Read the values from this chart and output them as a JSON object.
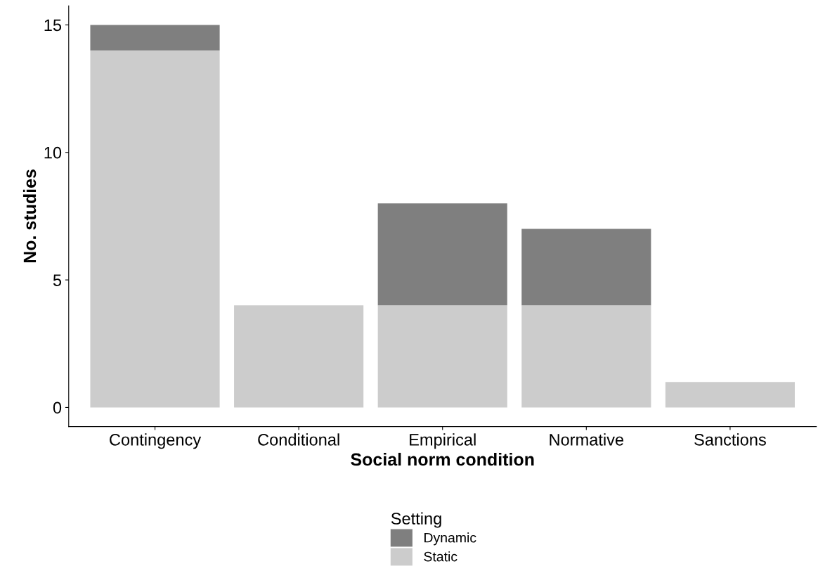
{
  "chart_data": {
    "type": "bar",
    "stacked": true,
    "xlabel": "Social norm condition",
    "ylabel": "No. studies",
    "legend_title": "Setting",
    "legend": "bottom",
    "grid": false,
    "categories": [
      "Contingency",
      "Conditional",
      "Empirical",
      "Normative",
      "Sanctions"
    ],
    "series": [
      {
        "name": "Static",
        "color": "#cccccc",
        "values": [
          14,
          4,
          4,
          4,
          1
        ]
      },
      {
        "name": "Dynamic",
        "color": "#7f7f7f",
        "values": [
          1,
          0,
          4,
          3,
          0
        ]
      }
    ],
    "ylim": [
      -0.75,
      15.75
    ],
    "yticks": [
      0,
      5,
      10,
      15
    ]
  }
}
